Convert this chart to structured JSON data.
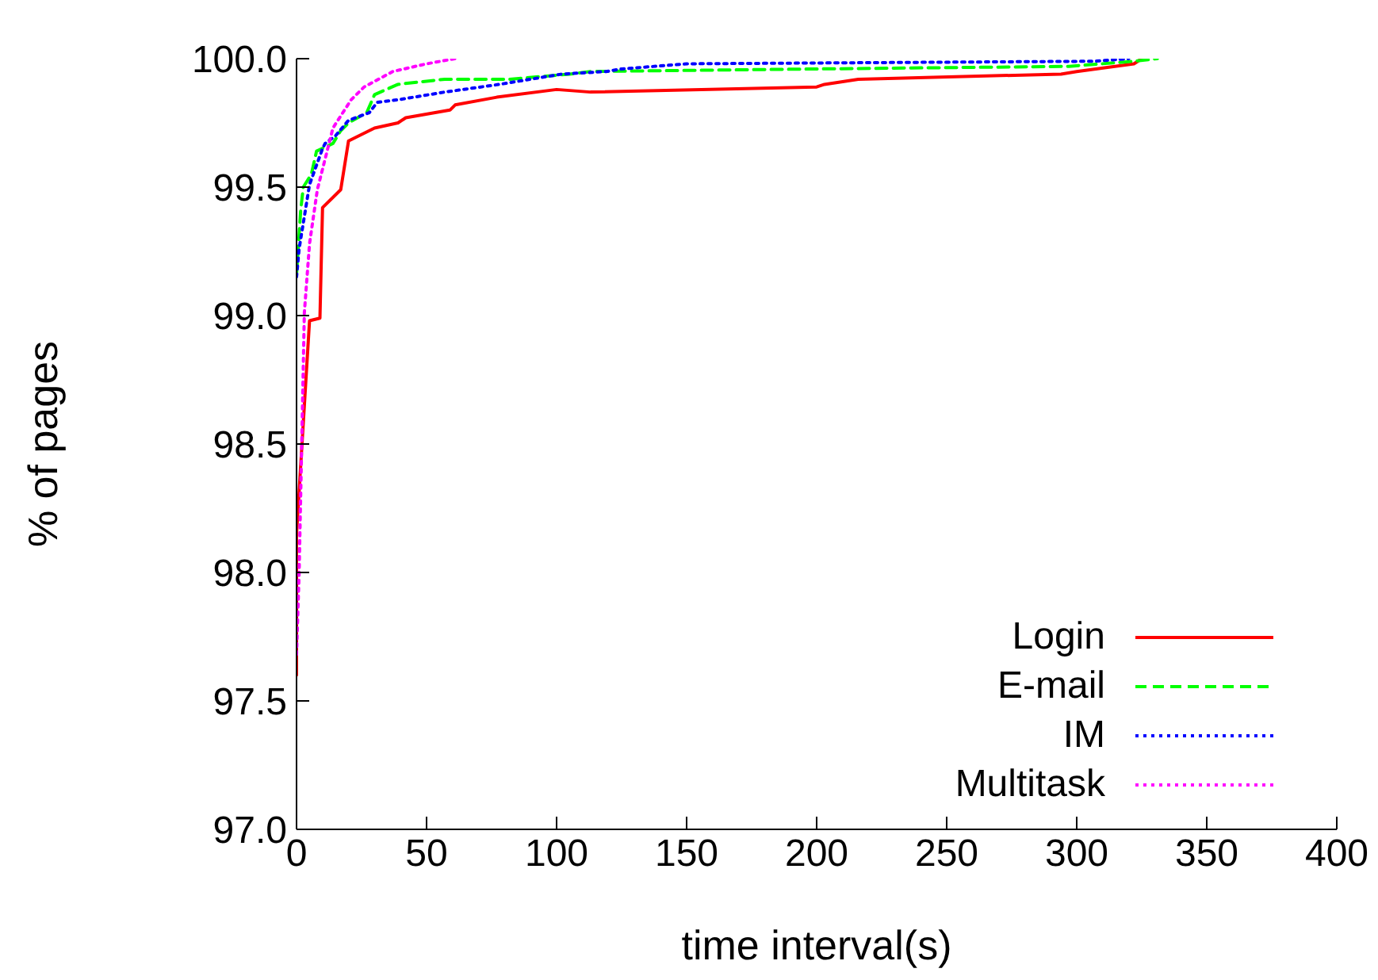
{
  "chart_data": {
    "type": "line",
    "xlabel": "time interval(s)",
    "ylabel": "% of pages",
    "xlim": [
      0,
      400
    ],
    "xticks": [
      0,
      50,
      100,
      150,
      200,
      250,
      300,
      350,
      400
    ],
    "ylim": [
      97,
      100
    ],
    "yticks": [
      {
        "value": 97,
        "label": "97.0"
      },
      {
        "value": 97.5,
        "label": "97.5"
      },
      {
        "value": 98,
        "label": "98.0"
      },
      {
        "value": 98.5,
        "label": "98.5"
      },
      {
        "value": 99,
        "label": "99.0"
      },
      {
        "value": 99.5,
        "label": "99.5"
      },
      {
        "value": 100,
        "label": "100.0"
      }
    ],
    "grid": false,
    "legend": "bottom right",
    "marker": "none",
    "series": [
      {
        "name": "Login",
        "color": "#ff0000",
        "line_style": "solid",
        "x": [
          0,
          0,
          5,
          9,
          10,
          17,
          20,
          30,
          39,
          42,
          59,
          61,
          77,
          100,
          113,
          200,
          203,
          216,
          294,
          300,
          322,
          325
        ],
        "values": [
          97.6,
          98.15,
          98.98,
          98.99,
          99.42,
          99.49,
          99.68,
          99.73,
          99.75,
          99.77,
          99.8,
          99.82,
          99.85,
          99.88,
          99.87,
          99.89,
          99.9,
          99.92,
          99.94,
          99.95,
          99.98,
          100
        ]
      },
      {
        "name": "E-mail",
        "color": "#00ff00",
        "line_style": "dashed",
        "x": [
          0,
          1.6,
          2.6,
          5.7,
          7.7,
          14,
          17,
          20,
          27,
          30,
          39,
          57,
          82,
          105,
          113,
          200,
          297,
          322,
          331
        ],
        "values": [
          99.16,
          99.41,
          99.5,
          99.55,
          99.64,
          99.67,
          99.72,
          99.75,
          99.79,
          99.86,
          99.9,
          99.92,
          99.92,
          99.94,
          99.95,
          99.96,
          99.97,
          99.99,
          100
        ]
      },
      {
        "name": "IM",
        "color": "#0000ff",
        "line_style": "dotted",
        "x": [
          0,
          1,
          5,
          10,
          11,
          15,
          20,
          28,
          31,
          39,
          57,
          78,
          102,
          119,
          125,
          150,
          307,
          320
        ],
        "values": [
          99.15,
          99.26,
          99.51,
          99.65,
          99.67,
          99.7,
          99.76,
          99.79,
          99.83,
          99.84,
          99.87,
          99.9,
          99.94,
          99.95,
          99.96,
          99.98,
          99.99,
          100
        ]
      },
      {
        "name": "Multitask",
        "color": "#ff00ff",
        "line_style": "dotted",
        "x": [
          0,
          1,
          2,
          3,
          5,
          8,
          14,
          21,
          26,
          37,
          50,
          61
        ],
        "values": [
          97.68,
          98,
          98.5,
          99.01,
          99.28,
          99.49,
          99.73,
          99.84,
          99.89,
          99.95,
          99.98,
          100
        ]
      }
    ]
  }
}
